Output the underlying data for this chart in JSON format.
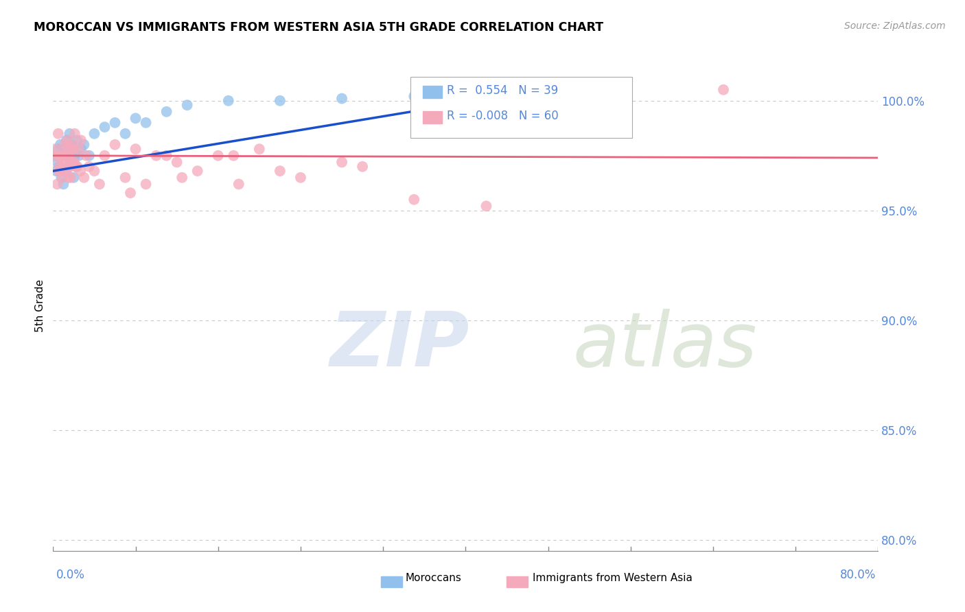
{
  "title": "MOROCCAN VS IMMIGRANTS FROM WESTERN ASIA 5TH GRADE CORRELATION CHART",
  "source": "Source: ZipAtlas.com",
  "ylabel": "5th Grade",
  "xlim": [
    0.0,
    80.0
  ],
  "ylim": [
    79.5,
    101.8
  ],
  "yticks": [
    80.0,
    85.0,
    90.0,
    95.0,
    100.0
  ],
  "ytick_labels": [
    "80.0%",
    "85.0%",
    "90.0%",
    "95.0%",
    "100.0%"
  ],
  "blue_color": "#92C0EC",
  "pink_color": "#F5AABC",
  "blue_line_color": "#1A4FCC",
  "pink_line_color": "#E8607A",
  "background_color": "#FFFFFF",
  "grid_color": "#C8C8C8",
  "blue_scatter_x": [
    0.2,
    0.3,
    0.4,
    0.5,
    0.6,
    0.7,
    0.8,
    0.9,
    1.0,
    1.1,
    1.2,
    1.3,
    1.4,
    1.5,
    1.6,
    1.7,
    1.8,
    1.9,
    2.0,
    2.1,
    2.2,
    2.3,
    2.5,
    2.7,
    3.0,
    3.5,
    4.0,
    5.0,
    6.0,
    7.0,
    8.0,
    9.0,
    11.0,
    13.0,
    17.0,
    22.0,
    28.0,
    35.0,
    45.0
  ],
  "blue_scatter_y": [
    97.5,
    96.8,
    97.2,
    97.8,
    97.0,
    98.0,
    96.5,
    97.5,
    96.2,
    97.8,
    96.8,
    98.2,
    97.5,
    97.0,
    98.5,
    97.2,
    98.0,
    97.8,
    96.5,
    97.5,
    97.0,
    98.2,
    97.5,
    97.8,
    98.0,
    97.5,
    98.5,
    98.8,
    99.0,
    98.5,
    99.2,
    99.0,
    99.5,
    99.8,
    100.0,
    100.0,
    100.1,
    100.2,
    100.3
  ],
  "pink_scatter_x": [
    0.2,
    0.3,
    0.4,
    0.5,
    0.6,
    0.7,
    0.8,
    0.9,
    1.0,
    1.1,
    1.2,
    1.3,
    1.4,
    1.5,
    1.6,
    1.7,
    1.8,
    1.9,
    2.0,
    2.1,
    2.2,
    2.5,
    2.7,
    3.0,
    3.5,
    4.0,
    5.0,
    6.0,
    7.0,
    8.0,
    9.0,
    10.0,
    12.0,
    14.0,
    16.0,
    18.0,
    20.0,
    24.0,
    28.0,
    35.0,
    42.0,
    7.5,
    12.5,
    17.5,
    22.0,
    30.0,
    0.35,
    0.55,
    0.75,
    1.05,
    1.25,
    1.55,
    1.85,
    2.05,
    2.35,
    2.65,
    3.2,
    4.5,
    11.0,
    65.0
  ],
  "pink_scatter_y": [
    97.8,
    97.5,
    96.2,
    98.5,
    97.0,
    96.8,
    97.5,
    96.5,
    97.2,
    98.0,
    97.5,
    96.8,
    98.2,
    97.5,
    97.0,
    96.5,
    98.0,
    97.2,
    97.8,
    98.5,
    97.0,
    97.8,
    98.2,
    96.5,
    97.0,
    96.8,
    97.5,
    98.0,
    96.5,
    97.8,
    96.2,
    97.5,
    97.2,
    96.8,
    97.5,
    96.2,
    97.8,
    96.5,
    97.2,
    95.5,
    95.2,
    95.8,
    96.5,
    97.5,
    96.8,
    97.0,
    97.5,
    96.8,
    97.5,
    97.2,
    97.8,
    96.5,
    97.8,
    97.2,
    97.0,
    96.8,
    97.5,
    96.2,
    97.5,
    100.5
  ],
  "blue_trend_x0": 0.0,
  "blue_trend_y0": 96.8,
  "blue_trend_x1": 45.0,
  "blue_trend_y1": 100.3,
  "pink_trend_x0": 0.0,
  "pink_trend_y0": 97.5,
  "pink_trend_x1": 80.0,
  "pink_trend_y1": 97.4
}
